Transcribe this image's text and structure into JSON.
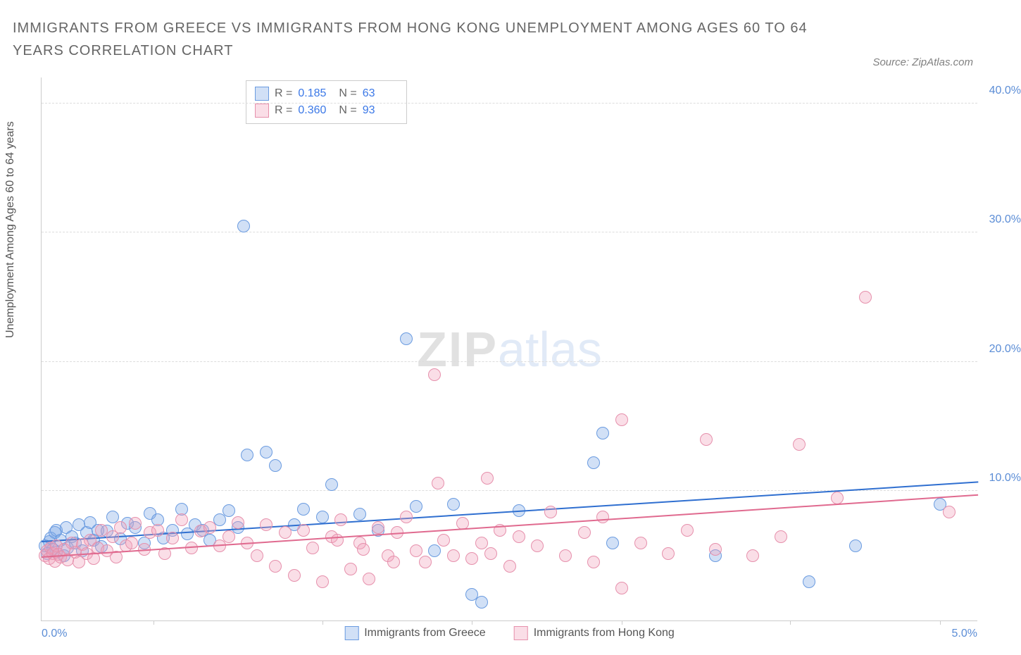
{
  "title": "IMMIGRANTS FROM GREECE VS IMMIGRANTS FROM HONG KONG UNEMPLOYMENT AMONG AGES 60 TO 64 YEARS CORRELATION CHART",
  "source": "Source: ZipAtlas.com",
  "ylabel": "Unemployment Among Ages 60 to 64 years",
  "watermark_a": "ZIP",
  "watermark_b": "atlas",
  "chart": {
    "type": "scatter",
    "x_domain": [
      0,
      5
    ],
    "y_domain": [
      0,
      42
    ],
    "x_axis_left_label": "0.0%",
    "x_axis_right_label": "5.0%",
    "y_ticks": [
      10,
      20,
      30,
      40
    ],
    "y_tick_labels": [
      "10.0%",
      "20.0%",
      "30.0%",
      "40.0%"
    ],
    "x_ticks_normalized": [
      0.12,
      0.3,
      0.46,
      0.62,
      0.8,
      0.96
    ],
    "grid_color": "#dddddd",
    "background_color": "#ffffff",
    "axis_color": "#cccccc",
    "tick_label_color": "#5b8dd6",
    "point_radius": 9,
    "point_border_width": 1.5,
    "series": [
      {
        "name": "Immigrants from Greece",
        "fill": "rgba(122,167,229,0.35)",
        "stroke": "#6a9be0",
        "stats_R": "0.185",
        "stats_N": "63",
        "trend": {
          "y_at_x0": 6.2,
          "y_at_xmax": 10.8,
          "color": "#2f6fd0"
        },
        "points": [
          [
            0.02,
            5.8
          ],
          [
            0.03,
            5.2
          ],
          [
            0.04,
            6.1
          ],
          [
            0.05,
            6.4
          ],
          [
            0.06,
            5.5
          ],
          [
            0.07,
            6.8
          ],
          [
            0.08,
            7.0
          ],
          [
            0.08,
            5.3
          ],
          [
            0.1,
            6.2
          ],
          [
            0.12,
            5.0
          ],
          [
            0.13,
            7.2
          ],
          [
            0.14,
            5.6
          ],
          [
            0.16,
            6.5
          ],
          [
            0.18,
            6.0
          ],
          [
            0.2,
            7.4
          ],
          [
            0.22,
            5.4
          ],
          [
            0.24,
            6.8
          ],
          [
            0.26,
            7.6
          ],
          [
            0.28,
            6.2
          ],
          [
            0.3,
            7.0
          ],
          [
            0.32,
            5.7
          ],
          [
            0.35,
            6.9
          ],
          [
            0.38,
            8.0
          ],
          [
            0.42,
            6.3
          ],
          [
            0.46,
            7.5
          ],
          [
            0.5,
            7.2
          ],
          [
            0.55,
            6.0
          ],
          [
            0.58,
            8.3
          ],
          [
            0.62,
            7.8
          ],
          [
            0.65,
            6.4
          ],
          [
            0.7,
            7.0
          ],
          [
            0.75,
            8.6
          ],
          [
            0.78,
            6.7
          ],
          [
            0.82,
            7.4
          ],
          [
            0.86,
            7.0
          ],
          [
            0.9,
            6.2
          ],
          [
            0.95,
            7.8
          ],
          [
            1.0,
            8.5
          ],
          [
            1.05,
            7.2
          ],
          [
            1.08,
            30.5
          ],
          [
            1.1,
            12.8
          ],
          [
            1.2,
            13.0
          ],
          [
            1.25,
            12.0
          ],
          [
            1.35,
            7.4
          ],
          [
            1.4,
            8.6
          ],
          [
            1.5,
            8.0
          ],
          [
            1.55,
            10.5
          ],
          [
            1.7,
            8.2
          ],
          [
            1.8,
            7.0
          ],
          [
            1.95,
            21.8
          ],
          [
            2.0,
            8.8
          ],
          [
            2.1,
            5.4
          ],
          [
            2.2,
            9.0
          ],
          [
            2.3,
            2.0
          ],
          [
            2.35,
            1.4
          ],
          [
            2.55,
            8.5
          ],
          [
            2.95,
            12.2
          ],
          [
            3.0,
            14.5
          ],
          [
            3.05,
            6.0
          ],
          [
            3.6,
            5.0
          ],
          [
            4.1,
            3.0
          ],
          [
            4.35,
            5.8
          ],
          [
            4.8,
            9.0
          ]
        ]
      },
      {
        "name": "Immigrants from Hong Kong",
        "fill": "rgba(242,160,185,0.35)",
        "stroke": "#e690ac",
        "stats_R": "0.360",
        "stats_N": "93",
        "trend": {
          "y_at_x0": 5.0,
          "y_at_xmax": 9.8,
          "color": "#e06a8f"
        },
        "points": [
          [
            0.02,
            5.0
          ],
          [
            0.03,
            5.4
          ],
          [
            0.04,
            4.8
          ],
          [
            0.05,
            5.6
          ],
          [
            0.06,
            5.2
          ],
          [
            0.07,
            4.6
          ],
          [
            0.08,
            5.8
          ],
          [
            0.09,
            5.1
          ],
          [
            0.1,
            4.9
          ],
          [
            0.12,
            5.5
          ],
          [
            0.14,
            4.7
          ],
          [
            0.16,
            6.0
          ],
          [
            0.18,
            5.3
          ],
          [
            0.2,
            4.5
          ],
          [
            0.22,
            5.9
          ],
          [
            0.24,
            5.2
          ],
          [
            0.26,
            6.2
          ],
          [
            0.28,
            4.8
          ],
          [
            0.3,
            5.6
          ],
          [
            0.32,
            7.0
          ],
          [
            0.35,
            5.4
          ],
          [
            0.38,
            6.5
          ],
          [
            0.4,
            4.9
          ],
          [
            0.42,
            7.2
          ],
          [
            0.45,
            5.8
          ],
          [
            0.48,
            6.0
          ],
          [
            0.5,
            7.5
          ],
          [
            0.55,
            5.5
          ],
          [
            0.58,
            6.8
          ],
          [
            0.62,
            7.0
          ],
          [
            0.66,
            5.2
          ],
          [
            0.7,
            6.4
          ],
          [
            0.75,
            7.8
          ],
          [
            0.8,
            5.6
          ],
          [
            0.85,
            6.9
          ],
          [
            0.9,
            7.2
          ],
          [
            0.95,
            5.8
          ],
          [
            1.0,
            6.5
          ],
          [
            1.05,
            7.6
          ],
          [
            1.1,
            6.0
          ],
          [
            1.15,
            5.0
          ],
          [
            1.2,
            7.4
          ],
          [
            1.25,
            4.2
          ],
          [
            1.3,
            6.8
          ],
          [
            1.35,
            3.5
          ],
          [
            1.4,
            7.0
          ],
          [
            1.45,
            5.6
          ],
          [
            1.5,
            3.0
          ],
          [
            1.55,
            6.5
          ],
          [
            1.58,
            6.2
          ],
          [
            1.6,
            7.8
          ],
          [
            1.65,
            4.0
          ],
          [
            1.7,
            6.0
          ],
          [
            1.72,
            5.5
          ],
          [
            1.75,
            3.2
          ],
          [
            1.8,
            7.2
          ],
          [
            1.85,
            5.0
          ],
          [
            1.88,
            4.5
          ],
          [
            1.9,
            6.8
          ],
          [
            1.95,
            8.0
          ],
          [
            2.0,
            5.4
          ],
          [
            2.05,
            4.5
          ],
          [
            2.1,
            19.0
          ],
          [
            2.12,
            10.6
          ],
          [
            2.15,
            6.2
          ],
          [
            2.2,
            5.0
          ],
          [
            2.25,
            7.5
          ],
          [
            2.3,
            4.8
          ],
          [
            2.35,
            6.0
          ],
          [
            2.38,
            11.0
          ],
          [
            2.4,
            5.2
          ],
          [
            2.45,
            7.0
          ],
          [
            2.5,
            4.2
          ],
          [
            2.55,
            6.5
          ],
          [
            2.65,
            5.8
          ],
          [
            2.72,
            8.4
          ],
          [
            2.8,
            5.0
          ],
          [
            2.9,
            6.8
          ],
          [
            2.95,
            4.5
          ],
          [
            3.0,
            8.0
          ],
          [
            3.1,
            2.5
          ],
          [
            3.1,
            15.5
          ],
          [
            3.2,
            6.0
          ],
          [
            3.35,
            5.2
          ],
          [
            3.45,
            7.0
          ],
          [
            3.55,
            14.0
          ],
          [
            3.6,
            5.5
          ],
          [
            3.8,
            5.0
          ],
          [
            3.95,
            6.5
          ],
          [
            4.05,
            13.6
          ],
          [
            4.25,
            9.5
          ],
          [
            4.4,
            25.0
          ],
          [
            4.85,
            8.4
          ]
        ]
      }
    ]
  },
  "stats_legend": {
    "R_label": "R =",
    "N_label": "N ="
  },
  "bottom_legend": [
    {
      "label": "Immigrants from Greece",
      "fill": "rgba(122,167,229,0.35)",
      "stroke": "#6a9be0"
    },
    {
      "label": "Immigrants from Hong Kong",
      "fill": "rgba(242,160,185,0.35)",
      "stroke": "#e690ac"
    }
  ]
}
